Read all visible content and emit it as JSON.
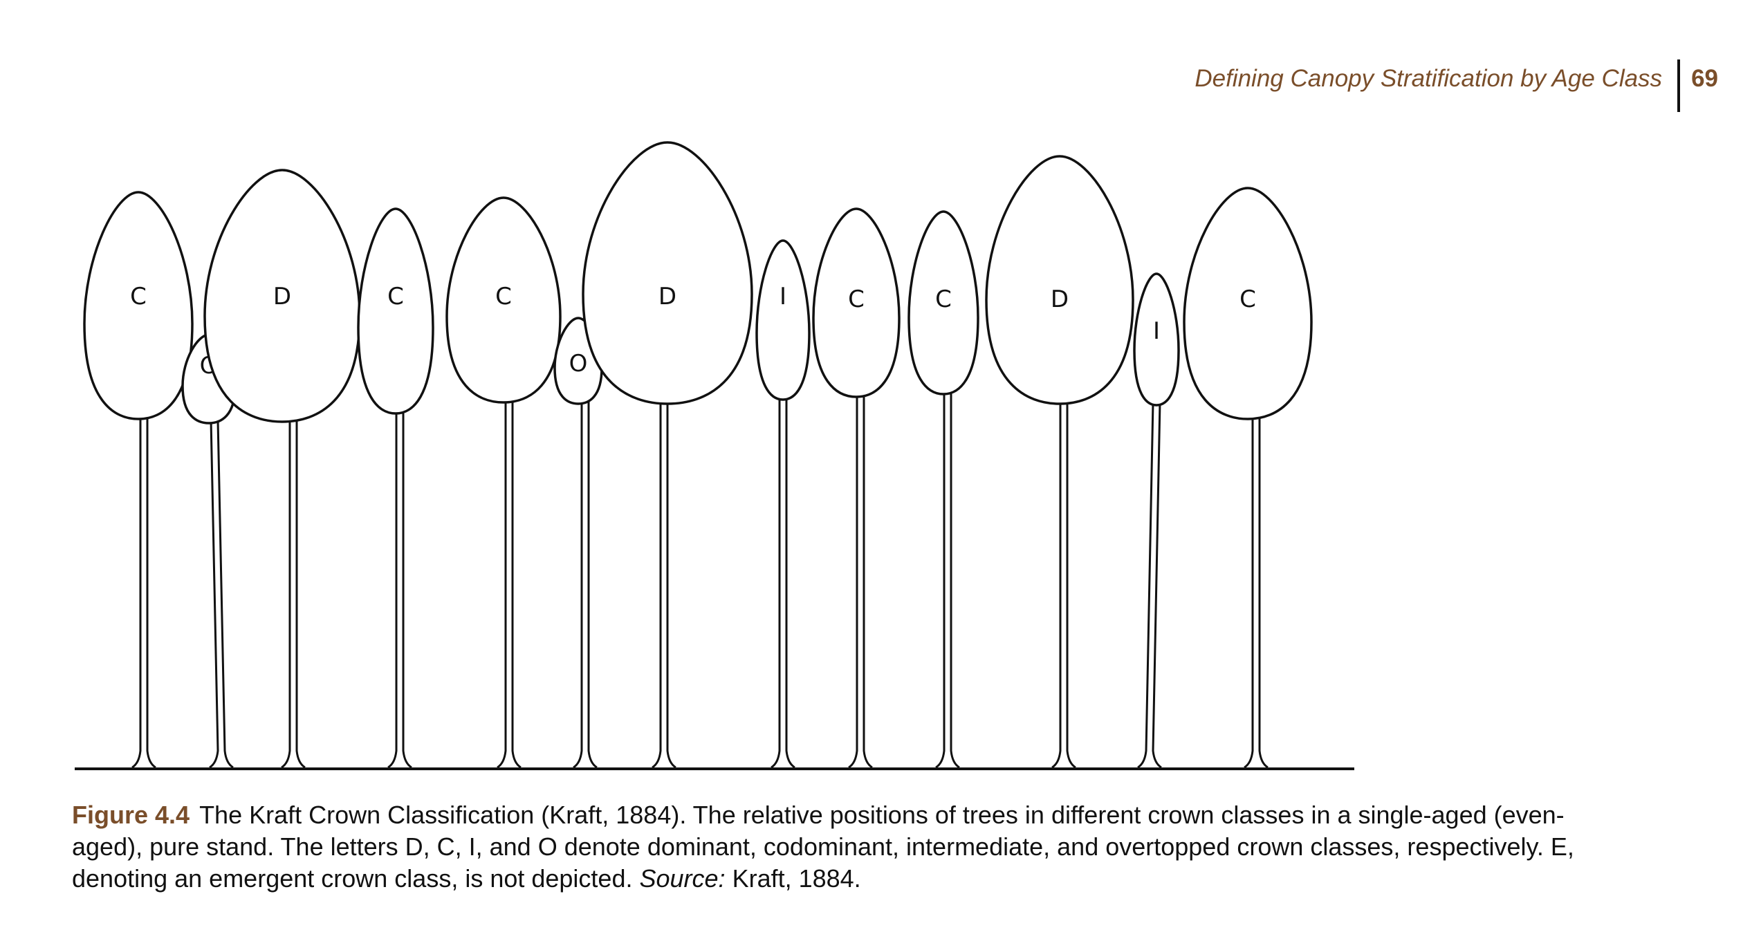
{
  "header": {
    "running_title": "Defining Canopy Stratification by Age Class",
    "page_number": "69"
  },
  "figure": {
    "trees": [
      {
        "label": "C"
      },
      {
        "label": "O"
      },
      {
        "label": "D"
      },
      {
        "label": "C"
      },
      {
        "label": "C"
      },
      {
        "label": "O"
      },
      {
        "label": "D"
      },
      {
        "label": "I"
      },
      {
        "label": "C"
      },
      {
        "label": "C"
      },
      {
        "label": "D"
      },
      {
        "label": "I"
      },
      {
        "label": "C"
      }
    ]
  },
  "caption": {
    "figure_label": "Figure 4.4",
    "text_part1": "The Kraft Crown Classification (Kraft, 1884). The relative positions of trees in different crown classes in a single-aged (even-aged), pure stand. The letters D, C, I, and O denote dominant, codominant, intermediate, and overtopped crown classes, respectively. E, denoting an emergent crown class, is not depicted. ",
    "source_label": "Source:",
    "source_text": " Kraft, 1884."
  }
}
